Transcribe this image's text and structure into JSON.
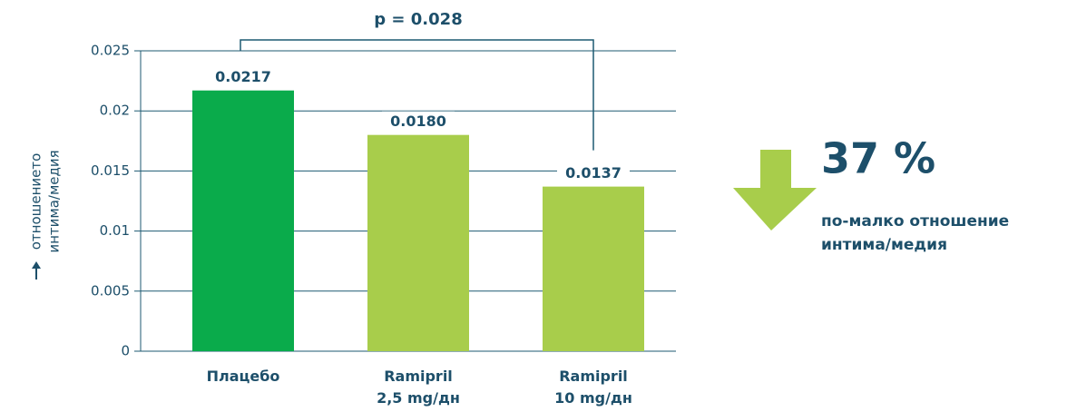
{
  "chart_data": {
    "type": "bar",
    "ylabel": [
      "отношението",
      "интима/медия"
    ],
    "categories": [
      "Плацебо",
      "Ramipril\n2,5 mg/дн",
      "Ramipril\n10 mg/дн"
    ],
    "values": [
      0.0217,
      0.018,
      0.0137
    ],
    "value_labels": [
      "0.0217",
      "0.0180",
      "0.0137"
    ],
    "colors": [
      "#0aab4b",
      "#a8cd4b",
      "#a8cd4b"
    ],
    "ylim": [
      0,
      0.025
    ],
    "yticks": [
      0,
      0.005,
      0.01,
      0.015,
      0.02,
      0.025
    ],
    "grid": true,
    "annotation": "p = 0.028",
    "callout": {
      "headline": "37 %",
      "text": [
        "по-малко отношение",
        "интима/медия"
      ]
    }
  }
}
